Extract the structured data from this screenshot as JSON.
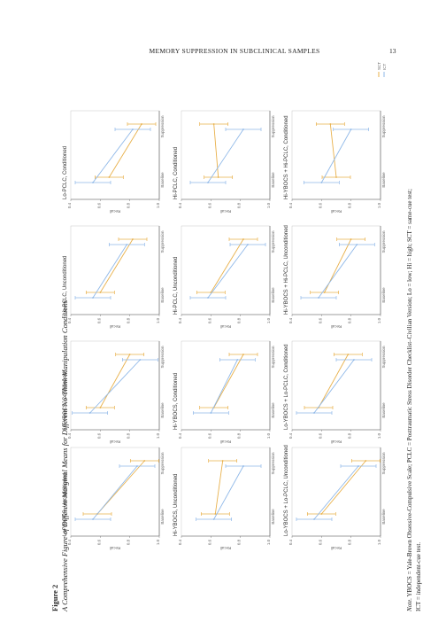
{
  "header": {
    "running_head": "MEMORY SUPPRESSION IN SUBCLINICAL SAMPLES",
    "page_number": "13"
  },
  "caption": {
    "label": "Figure 2",
    "title": "A Comprehensive Figure of Different Marginal Means for Different No-Think Manipulation Conditions"
  },
  "note": {
    "label": "Note.",
    "line1": "YBOCS = Yale-Brown Obsessive-Compulsive Scale; PCLC = Posttraumatic Stress Disorder Checklist–Civilian Version; Lo = low; Hi = high; SCT = same-cue test;",
    "line2": "ICT = independent-cue test."
  },
  "legend": {
    "items": [
      "SCT",
      "ICT"
    ],
    "colors": {
      "SCT": "#e8b04a",
      "ICT": "#8fb8e8"
    }
  },
  "colors": {
    "sct": "#e8b04a",
    "ict": "#8fb8e8",
    "frame": "#555555"
  },
  "chart_data": {
    "type": "line",
    "x_categories": [
      "Baseline",
      "Suppression"
    ],
    "ylabel": "Recall",
    "panels": [
      {
        "title": "Lo-YBOCS, Unconditioned",
        "series": [
          {
            "name": "SCT",
            "values": [
              0.58,
              0.9
            ]
          },
          {
            "name": "ICT",
            "values": [
              0.55,
              0.85
            ]
          }
        ]
      },
      {
        "title": "Lo-YBOCS, Conditioned",
        "series": [
          {
            "name": "SCT",
            "values": [
              0.6,
              0.8
            ]
          },
          {
            "name": "ICT",
            "values": [
              0.53,
              0.87
            ]
          }
        ]
      },
      {
        "title": "Lo-PCLC, Unconditioned",
        "series": [
          {
            "name": "SCT",
            "values": [
              0.6,
              0.82
            ]
          },
          {
            "name": "ICT",
            "values": [
              0.55,
              0.78
            ]
          }
        ]
      },
      {
        "title": "Lo-PCLC, Conditioned",
        "series": [
          {
            "name": "SCT",
            "values": [
              0.66,
              0.88
            ]
          },
          {
            "name": "ICT",
            "values": [
              0.55,
              0.82
            ]
          }
        ]
      },
      {
        "title": "Hi-YBOCS, Unconditioned",
        "series": [
          {
            "name": "SCT",
            "values": [
              0.63,
              0.68
            ]
          },
          {
            "name": "ICT",
            "values": [
              0.62,
              0.82
            ]
          }
        ]
      },
      {
        "title": "Hi-YBOCS, Conditioned",
        "series": [
          {
            "name": "SCT",
            "values": [
              0.62,
              0.82
            ]
          },
          {
            "name": "ICT",
            "values": [
              0.6,
              0.78
            ]
          }
        ]
      },
      {
        "title": "Hi-PCLC, Unconditioned",
        "series": [
          {
            "name": "SCT",
            "values": [
              0.6,
              0.82
            ]
          },
          {
            "name": "ICT",
            "values": [
              0.58,
              0.85
            ]
          }
        ]
      },
      {
        "title": "Hi-PCLC, Conditioned",
        "series": [
          {
            "name": "SCT",
            "values": [
              0.65,
              0.62
            ]
          },
          {
            "name": "ICT",
            "values": [
              0.58,
              0.82
            ]
          }
        ]
      },
      {
        "title": "Lo-YBOCS + Lo-PCLC, Unconditioned",
        "series": [
          {
            "name": "SCT",
            "values": [
              0.6,
              0.9
            ]
          },
          {
            "name": "ICT",
            "values": [
              0.55,
              0.85
            ]
          }
        ]
      },
      {
        "title": "Lo-YBOCS + Lo-PCLC, Conditioned",
        "series": [
          {
            "name": "SCT",
            "values": [
              0.58,
              0.78
            ]
          },
          {
            "name": "ICT",
            "values": [
              0.55,
              0.82
            ]
          }
        ]
      },
      {
        "title": "Hi-YBOCS + Hi-PCLC, Unconditioned",
        "series": [
          {
            "name": "SCT",
            "values": [
              0.62,
              0.8
            ]
          },
          {
            "name": "ICT",
            "values": [
              0.58,
              0.84
            ]
          }
        ]
      },
      {
        "title": "Hi-YBOCS + Hi-PCLC, Conditioned",
        "series": [
          {
            "name": "SCT",
            "values": [
              0.7,
              0.66
            ]
          },
          {
            "name": "ICT",
            "values": [
              0.6,
              0.8
            ]
          }
        ]
      }
    ]
  }
}
